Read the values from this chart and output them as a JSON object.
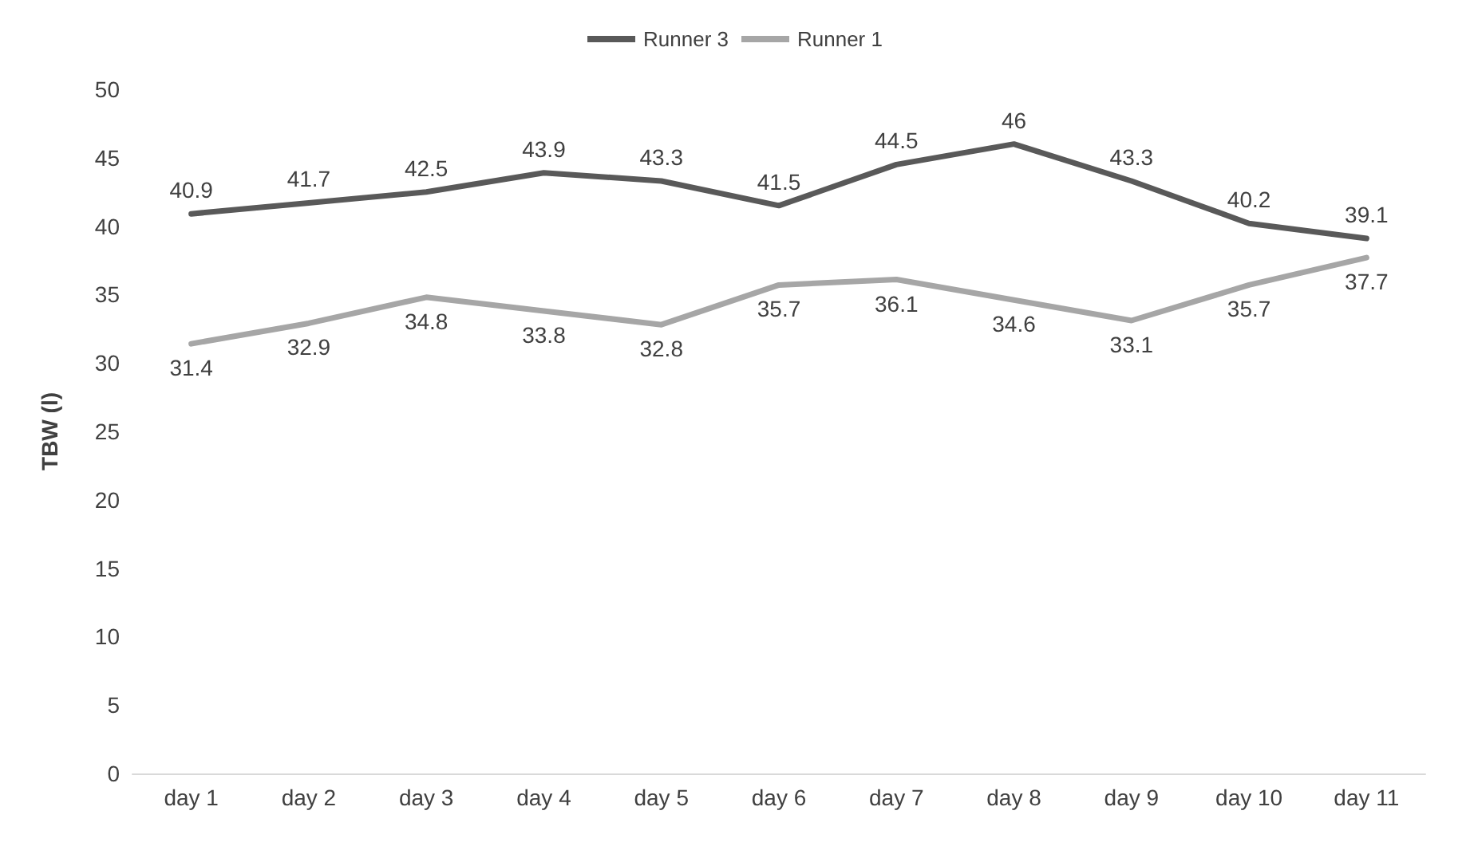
{
  "chart_data": {
    "type": "line",
    "ylabel": "TBW (l)",
    "categories": [
      "day 1",
      "day 2",
      "day 3",
      "day 4",
      "day 5",
      "day 6",
      "day 7",
      "day 8",
      "day 9",
      "day 10",
      "day 11"
    ],
    "series": [
      {
        "name": "Runner 3",
        "color": "#595959",
        "values": [
          40.9,
          41.7,
          42.5,
          43.9,
          43.3,
          41.5,
          44.5,
          46,
          43.3,
          40.2,
          39.1
        ]
      },
      {
        "name": "Runner 1",
        "color": "#a6a6a6",
        "values": [
          31.4,
          32.9,
          34.8,
          33.8,
          32.8,
          35.7,
          36.1,
          34.6,
          33.1,
          35.7,
          37.7
        ]
      }
    ],
    "ylim": [
      0,
      50
    ],
    "yticks": [
      0,
      5,
      10,
      15,
      20,
      25,
      30,
      35,
      40,
      45,
      50
    ],
    "grid": false,
    "legend": "top",
    "marker": "none",
    "line_style": "solid",
    "data_labels": true
  }
}
